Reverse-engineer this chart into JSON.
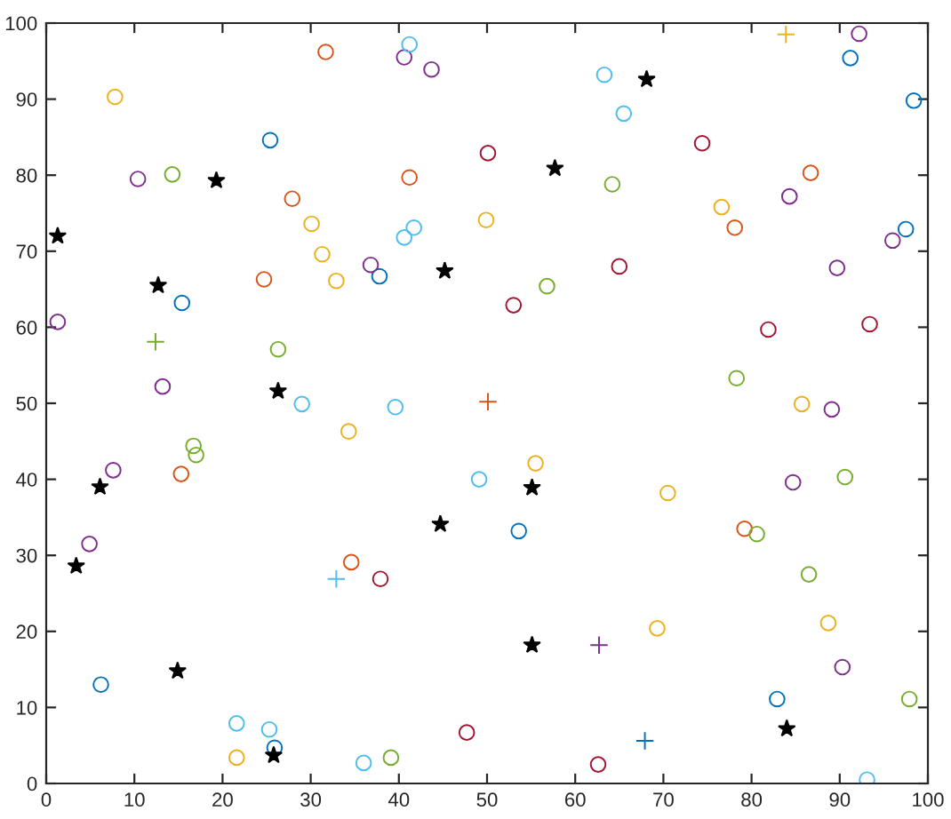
{
  "chart_data": {
    "type": "scatter",
    "marker": "circle",
    "grid": false,
    "legend": false,
    "xlim": [
      0,
      100
    ],
    "ylim": [
      0,
      100
    ],
    "xticks": [
      0,
      10,
      20,
      30,
      40,
      50,
      60,
      70,
      80,
      90,
      100
    ],
    "yticks": [
      0,
      10,
      20,
      30,
      40,
      50,
      60,
      70,
      80,
      90,
      100
    ],
    "series": [
      {
        "color": "#0072bd",
        "x": [
          25.4,
          37.8,
          15.4,
          91.2,
          98.4,
          97.5,
          6.2,
          25.9,
          53.6,
          82.9
        ],
        "values": [
          84.6,
          66.7,
          63.2,
          95.4,
          89.8,
          72.9,
          13.0,
          4.7,
          33.2,
          11.1
        ]
      },
      {
        "color": "#d95319",
        "x": [
          31.7,
          41.2,
          27.9,
          24.7,
          86.7,
          78.1,
          15.3,
          34.6,
          79.2
        ],
        "values": [
          96.2,
          79.7,
          76.9,
          66.3,
          80.3,
          73.1,
          40.7,
          29.1,
          33.5
        ]
      },
      {
        "color": "#edb120",
        "x": [
          7.8,
          30.1,
          31.3,
          32.9,
          49.9,
          76.6,
          85.7,
          34.3,
          21.6,
          55.5,
          70.5,
          69.3,
          88.7
        ],
        "values": [
          90.3,
          73.6,
          69.6,
          66.1,
          74.1,
          75.8,
          49.9,
          46.3,
          3.4,
          42.1,
          38.2,
          20.4,
          21.1
        ]
      },
      {
        "color": "#7e2f8e",
        "x": [
          10.4,
          40.6,
          43.7,
          36.8,
          1.3,
          13.2,
          92.2,
          84.3,
          96.0,
          89.7,
          89.1,
          7.6,
          4.9,
          84.7,
          90.3
        ],
        "values": [
          79.5,
          95.5,
          93.9,
          68.2,
          60.7,
          52.2,
          98.6,
          77.2,
          71.4,
          67.8,
          49.2,
          41.2,
          31.5,
          39.6,
          15.3
        ]
      },
      {
        "color": "#77ac30",
        "x": [
          14.3,
          26.3,
          64.2,
          56.8,
          78.3,
          16.7,
          17.0,
          39.1,
          90.6,
          80.6,
          86.5,
          97.9
        ],
        "values": [
          80.1,
          57.1,
          78.8,
          65.4,
          53.3,
          44.4,
          43.2,
          3.4,
          40.3,
          32.8,
          27.5,
          11.1
        ]
      },
      {
        "color": "#4dbeee",
        "x": [
          41.2,
          40.6,
          41.7,
          29.0,
          39.6,
          63.3,
          65.5,
          21.6,
          25.3,
          36.0,
          49.1,
          93.1
        ],
        "values": [
          97.2,
          71.8,
          73.1,
          49.9,
          49.5,
          93.2,
          88.1,
          7.9,
          7.1,
          2.7,
          40.0,
          0.5
        ]
      },
      {
        "color": "#a2142f",
        "x": [
          50.1,
          65.0,
          53.0,
          81.9,
          93.4,
          37.9,
          47.7,
          62.6
        ],
        "values": [
          82.9,
          68.0,
          62.9,
          59.7,
          60.4,
          26.9,
          6.7,
          2.5
        ]
      },
      {
        "color": "#000000",
        "marker": "star",
        "x": [
          1.3,
          12.7,
          19.3,
          45.2,
          26.3,
          68.1,
          57.7,
          6.1,
          3.4,
          14.9,
          25.8,
          44.7,
          55.1,
          55.1,
          84.0
        ],
        "values": [
          72.0,
          65.5,
          79.3,
          67.4,
          51.6,
          92.6,
          80.9,
          39.0,
          28.6,
          14.8,
          3.7,
          34.1,
          38.9,
          18.2,
          7.2
        ]
      },
      {
        "color": "#77ac30",
        "marker": "cross",
        "x": [
          12.4
        ],
        "values": [
          58.1
        ]
      },
      {
        "color": "#4dbeee",
        "marker": "cross",
        "x": [
          32.9
        ],
        "values": [
          26.9
        ]
      },
      {
        "color": "#7e2f8e",
        "marker": "cross",
        "x": [
          62.7
        ],
        "values": [
          18.2
        ]
      },
      {
        "color": "#0072bd",
        "marker": "cross",
        "x": [
          67.9
        ],
        "values": [
          5.6
        ]
      },
      {
        "color": "#edb120",
        "marker": "cross",
        "x": [
          83.9
        ],
        "values": [
          98.5
        ]
      },
      {
        "color": "#d95319",
        "marker": "cross",
        "x": [
          50.1
        ],
        "values": [
          50.2
        ]
      },
      {
        "color": "#a2142f",
        "x": [
          74.4
        ],
        "values": [
          84.2
        ]
      }
    ]
  }
}
